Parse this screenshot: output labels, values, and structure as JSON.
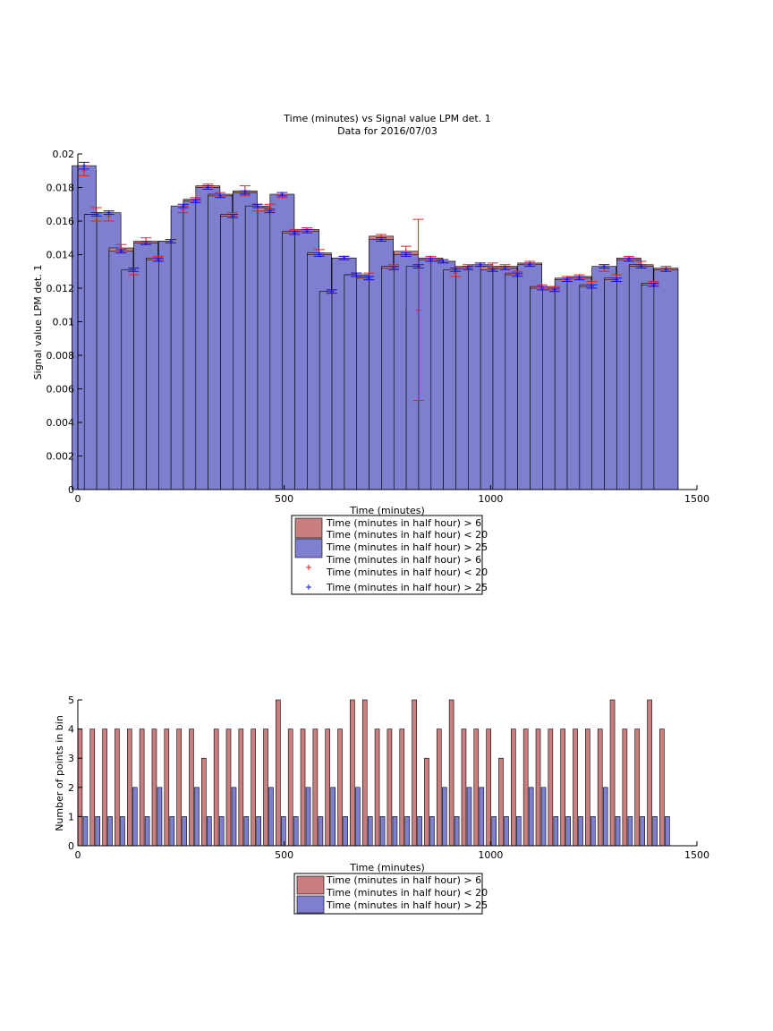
{
  "colors": {
    "red_bar": "#c97f7f",
    "blue_bar": "#7f7fd0",
    "red_err": "#e02020",
    "blue_err": "#1010e0",
    "axis": "#000000"
  },
  "chart_data": [
    {
      "type": "bar",
      "title": "Time (minutes) vs Signal value LPM det. 1",
      "subtitle": "Data for 2016/07/03",
      "xlabel": "Time (minutes)",
      "ylabel": "Signal value LPM det. 1",
      "xlim": [
        0,
        1500
      ],
      "ylim": [
        0,
        0.02
      ],
      "xticks": [
        "0",
        "500",
        "1000",
        "1500"
      ],
      "yticks": [
        "0",
        "0.002",
        "0.004",
        "0.006",
        "0.008",
        "0.01",
        "0.012",
        "0.014",
        "0.016",
        "0.018",
        "0.02"
      ],
      "legend_position": "bottom-center",
      "legend": [
        "Time (minutes in half hour) > 6",
        "Time (minutes in half hour) < 20",
        "Time (minutes in half hour) > 25",
        "Time (minutes in half hour) > 6",
        "Time (minutes in half hour) < 20",
        "Time (minutes in half hour) > 25"
      ],
      "x": [
        15,
        45,
        75,
        105,
        135,
        165,
        195,
        225,
        255,
        285,
        315,
        345,
        375,
        405,
        435,
        465,
        495,
        525,
        555,
        585,
        615,
        645,
        675,
        705,
        735,
        765,
        795,
        825,
        855,
        885,
        915,
        945,
        975,
        1005,
        1035,
        1065,
        1095,
        1125,
        1155,
        1185,
        1215,
        1245,
        1275,
        1305,
        1335,
        1365,
        1395,
        1425
      ],
      "series": [
        {
          "name": "Time (minutes in half hour) > 6 Time (minutes in half hour) < 20",
          "values": [
            0.019,
            0.0164,
            0.0163,
            0.0144,
            0.013,
            0.0148,
            0.0138,
            0.0148,
            0.0167,
            0.0173,
            0.0181,
            0.0176,
            0.0164,
            0.0178,
            0.0168,
            0.0168,
            0.0175,
            0.0154,
            0.0155,
            0.0141,
            0.0118,
            0.0138,
            0.0128,
            0.0127,
            0.0151,
            0.0133,
            0.0142,
            0.0107,
            0.0138,
            0.0136,
            0.0129,
            0.0133,
            0.0134,
            0.0133,
            0.0133,
            0.0129,
            0.0135,
            0.0121,
            0.012,
            0.0126,
            0.0127,
            0.0122,
            0.0132,
            0.0126,
            0.0138,
            0.0134,
            0.0123,
            0.0132
          ],
          "errors": [
            0.0003,
            0.0004,
            0.0003,
            0.0002,
            0.0002,
            0.0002,
            0.0001,
            0.0001,
            0.0002,
            0.0001,
            0.0001,
            0.0001,
            0.0001,
            0.0003,
            0.0002,
            0.0002,
            0.0001,
            0.0001,
            0.0001,
            0.0002,
            0.0001,
            0.0001,
            0.0001,
            0.0002,
            0.0001,
            0.0001,
            0.0003,
            0.0054,
            0.0001,
            0.0001,
            0.0002,
            0.0001,
            0.0001,
            0.0002,
            0.0001,
            0.0001,
            0.0001,
            0.0001,
            0.0001,
            0.0001,
            0.0001,
            0.0002,
            0.0002,
            0.0002,
            0.0001,
            0.0002,
            0.0001,
            0.0001
          ]
        },
        {
          "name": "Time (minutes in half hour) > 25",
          "values": [
            0.0193,
            0.0164,
            0.0165,
            0.0142,
            0.0131,
            0.0147,
            0.0137,
            0.0148,
            0.0169,
            0.0172,
            0.018,
            0.0175,
            0.0163,
            0.0177,
            0.0169,
            0.0166,
            0.0176,
            0.0153,
            0.0154,
            0.014,
            0.0118,
            0.0138,
            0.0128,
            0.0126,
            0.0149,
            0.0132,
            0.014,
            0.0133,
            0.0137,
            0.0136,
            0.0131,
            0.0132,
            0.0134,
            0.0131,
            0.0132,
            0.0128,
            0.0134,
            0.012,
            0.0119,
            0.0125,
            0.0126,
            0.0121,
            0.0133,
            0.0125,
            0.0137,
            0.0133,
            0.0122,
            0.0131
          ],
          "errors": [
            0.0002,
            0.0001,
            0.0001,
            0.0001,
            0.0001,
            0.0001,
            0.0001,
            0.0001,
            0.0001,
            0.0001,
            0.0001,
            0.0001,
            0.0001,
            0.0001,
            0.0001,
            0.0001,
            0.0001,
            0.0001,
            0.0001,
            0.0001,
            0.0001,
            0.0001,
            0.0001,
            0.0001,
            0.0001,
            0.0001,
            0.0001,
            0.0001,
            0.0001,
            0.0001,
            0.0001,
            0.0001,
            0.0001,
            0.0001,
            0.0001,
            0.0001,
            0.0001,
            0.0001,
            0.0001,
            0.0001,
            0.0001,
            0.0001,
            0.0001,
            0.0001,
            0.0001,
            0.0001,
            0.0001,
            0.0001
          ]
        }
      ]
    },
    {
      "type": "bar",
      "xlabel": "Time (minutes)",
      "ylabel": "Number of points in bin",
      "xlim": [
        0,
        1500
      ],
      "ylim": [
        0,
        5
      ],
      "xticks": [
        "0",
        "500",
        "1000",
        "1500"
      ],
      "yticks": [
        "0",
        "1",
        "2",
        "3",
        "4",
        "5"
      ],
      "legend_position": "bottom-center",
      "legend": [
        "Time (minutes in half hour) > 6",
        "Time (minutes in half hour) < 20",
        "Time (minutes in half hour) > 25"
      ],
      "x": [
        15,
        45,
        75,
        105,
        135,
        165,
        195,
        225,
        255,
        285,
        315,
        345,
        375,
        405,
        435,
        465,
        495,
        525,
        555,
        585,
        615,
        645,
        675,
        705,
        735,
        765,
        795,
        825,
        855,
        885,
        915,
        945,
        975,
        1005,
        1035,
        1065,
        1095,
        1125,
        1155,
        1185,
        1215,
        1245,
        1275,
        1305,
        1335,
        1365,
        1395,
        1425
      ],
      "series": [
        {
          "name": "Time (minutes in half hour) > 6 Time (minutes in half hour) < 20",
          "values": [
            4,
            4,
            4,
            4,
            4,
            4,
            4,
            4,
            4,
            4,
            3,
            4,
            4,
            4,
            4,
            4,
            5,
            4,
            4,
            4,
            4,
            4,
            5,
            5,
            4,
            4,
            4,
            5,
            3,
            4,
            5,
            4,
            4,
            4,
            3,
            4,
            4,
            4,
            4,
            4,
            4,
            4,
            4,
            5,
            4,
            4,
            5,
            4
          ]
        },
        {
          "name": "Time (minutes in half hour) > 25",
          "values": [
            1,
            1,
            1,
            1,
            2,
            1,
            2,
            1,
            1,
            2,
            1,
            1,
            2,
            1,
            1,
            2,
            1,
            1,
            2,
            1,
            2,
            1,
            2,
            1,
            1,
            1,
            1,
            1,
            1,
            2,
            1,
            2,
            2,
            1,
            1,
            1,
            2,
            2,
            1,
            1,
            1,
            1,
            2,
            1,
            1,
            1,
            1,
            1
          ]
        }
      ]
    }
  ]
}
